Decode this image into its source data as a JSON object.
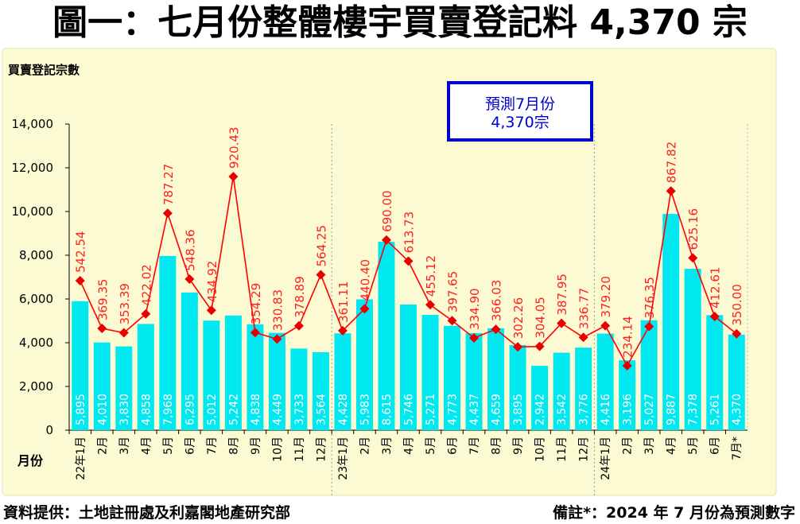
{
  "title": "圖一：七月份整體樓宇買賣登記料 4,370 宗",
  "footer": {
    "source": "資料提供：土地註冊處及利嘉閣地產研究部",
    "note": "備註*：2024 年 7 月份為預測數字"
  },
  "colors": {
    "panel": "#fcfad2",
    "bar": "#00e8f0",
    "line": "#ff0000",
    "marker": "#e80000",
    "bar_label": "#ffffff",
    "price_label": "#ff2020",
    "callout_border": "#0000cc",
    "callout_text": "#0000cc"
  },
  "chart_data": {
    "type": "bar",
    "ylabel": "買賣登記宗數",
    "xlabel": "月份",
    "ylim": [
      0,
      14000
    ],
    "yticks": [
      "0",
      "2,000",
      "4,000",
      "6,000",
      "8,000",
      "10,000",
      "12,000",
      "14,000"
    ],
    "categories": [
      "22年1月",
      "2月",
      "3月",
      "4月",
      "5月",
      "6月",
      "7月",
      "8月",
      "9月",
      "10月",
      "11月",
      "12月",
      "23年1月",
      "2月",
      "3月",
      "4月",
      "5月",
      "6月",
      "7月",
      "8月",
      "9月",
      "10月",
      "11月",
      "12月",
      "24年1月",
      "2月",
      "3月",
      "4月",
      "5月",
      "6月",
      "7月*"
    ],
    "values": [
      5895,
      4010,
      3830,
      4858,
      7968,
      6295,
      5012,
      5242,
      4838,
      4449,
      3733,
      3564,
      4428,
      5983,
      8615,
      5746,
      5271,
      4773,
      4437,
      4659,
      3895,
      2942,
      3542,
      3776,
      4416,
      3196,
      5027,
      9887,
      7378,
      5261,
      4370
    ],
    "value_labels": [
      "5,895",
      "4,010",
      "3,830",
      "4,858",
      "7,968",
      "6,295",
      "5,012",
      "5,242",
      "4,838",
      "4,449",
      "3,733",
      "3,564",
      "4,428",
      "5,983",
      "8,615",
      "5,746",
      "5,271",
      "4,773",
      "4,437",
      "4,659",
      "3,895",
      "2,942",
      "3,542",
      "3,776",
      "4,416",
      "3,196",
      "5,027",
      "9,887",
      "7,378",
      "5,261",
      "4,370"
    ],
    "line_series": {
      "values": [
        542.54,
        369.35,
        353.39,
        422.02,
        787.27,
        548.36,
        434.92,
        920.43,
        354.29,
        330.83,
        378.89,
        564.25,
        361.11,
        440.4,
        690.0,
        613.73,
        455.12,
        397.65,
        334.9,
        366.03,
        302.26,
        304.05,
        387.95,
        336.77,
        379.2,
        234.14,
        376.35,
        867.82,
        625.16,
        412.61,
        350.0
      ],
      "labels": [
        "542.54",
        "369.35",
        "353.39",
        "422.02",
        "787.27",
        "548.36",
        "434.92",
        "920.43",
        "354.29",
        "330.83",
        "378.89",
        "564.25",
        "361.11",
        "440.40",
        "690.00",
        "613.73",
        "455.12",
        "397.65",
        "334.90",
        "366.03",
        "302.26",
        "304.05",
        "387.95",
        "336.77",
        "379.20",
        "234.14",
        "376.35",
        "867.82",
        "625.16",
        "412.61",
        "350.00"
      ]
    },
    "callout": [
      "預測7月份",
      "4,370宗"
    ],
    "grid": false,
    "year_separators_after": [
      11,
      23
    ]
  }
}
